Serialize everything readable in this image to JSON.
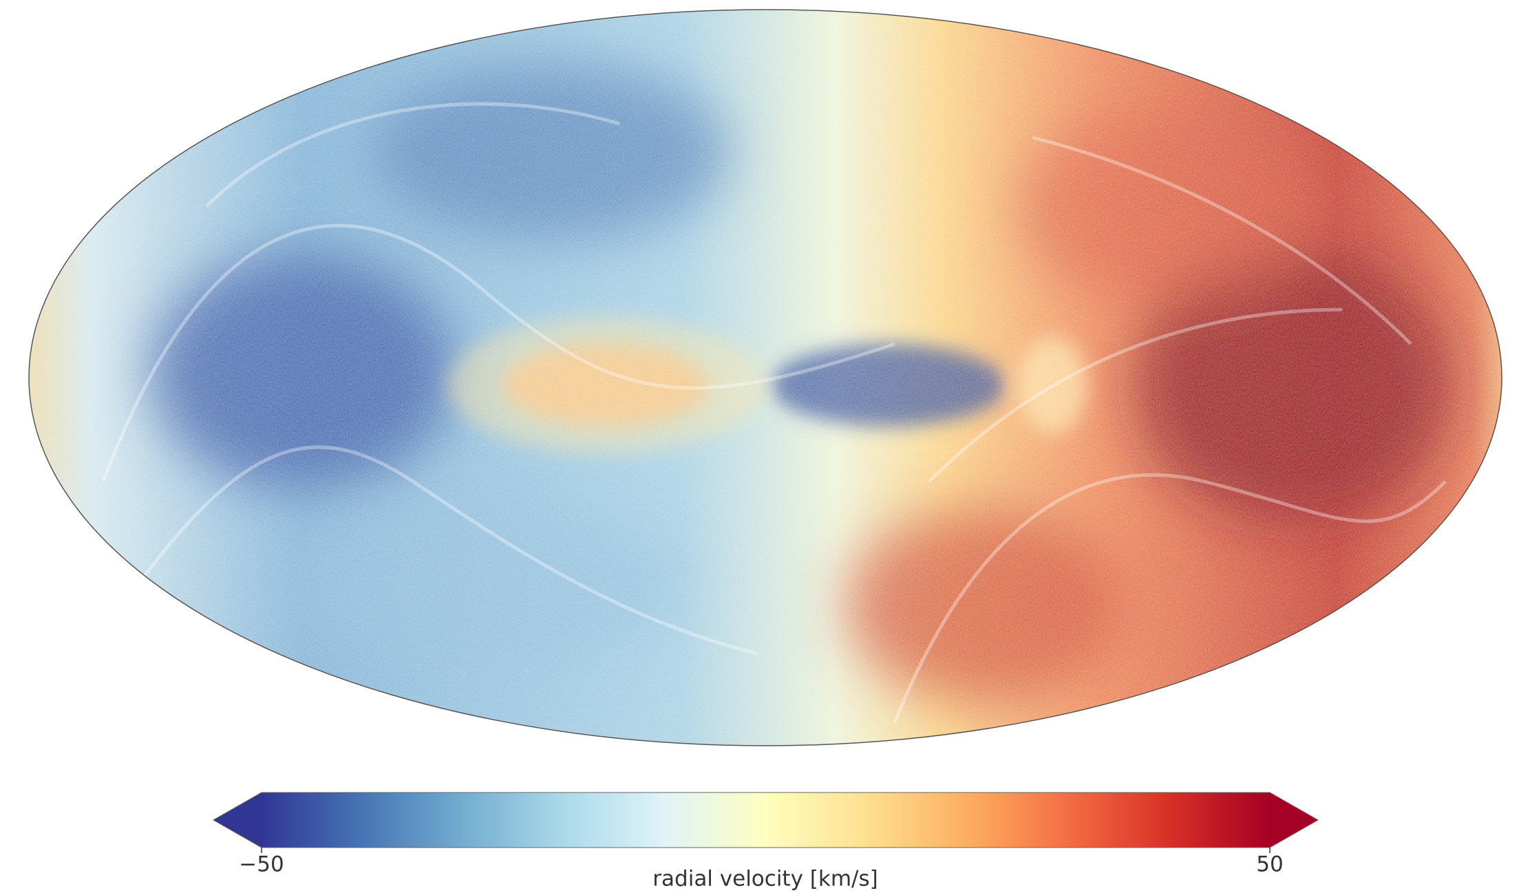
{
  "chart_data": {
    "type": "colorbar-map",
    "colorbar": {
      "label": "radial velocity [km/s]",
      "lim": [
        -50,
        50
      ],
      "ticks": [
        {
          "value": -50,
          "label": "−50"
        },
        50
      ],
      "colors": [
        "#313695",
        "#4575b4",
        "#74add1",
        "#abd9e9",
        "#e0f3f8",
        "#ffffbf",
        "#fee090",
        "#fdae61",
        "#f46d43",
        "#d73027",
        "#a50026"
      ],
      "extend": "both"
    }
  }
}
